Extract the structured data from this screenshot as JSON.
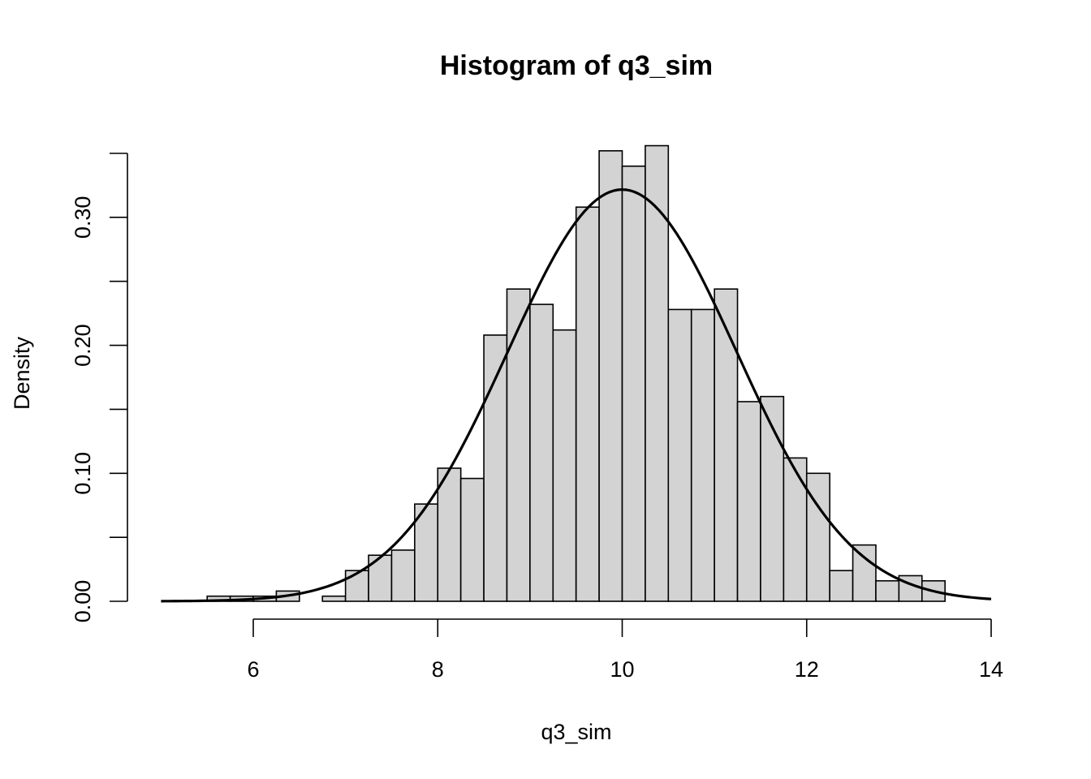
{
  "chart_data": {
    "type": "bar",
    "title": "Histogram of q3_sim",
    "xlabel": "q3_sim",
    "ylabel": "Density",
    "xlim": [
      5,
      14
    ],
    "ylim": [
      0,
      0.35
    ],
    "x_ticks": [
      6,
      8,
      10,
      12,
      14
    ],
    "x_tick_labels": [
      "6",
      "8",
      "10",
      "12",
      "14"
    ],
    "y_ticks": [
      0.0,
      0.05,
      0.1,
      0.15,
      0.2,
      0.25,
      0.3,
      0.35
    ],
    "y_tick_labels": [
      "0.00",
      "",
      "0.10",
      "",
      "0.20",
      "",
      "0.30",
      ""
    ],
    "bin_width": 0.25,
    "bins": [
      {
        "start": 5.5,
        "density": 0.004
      },
      {
        "start": 5.75,
        "density": 0.004
      },
      {
        "start": 6.0,
        "density": 0.004
      },
      {
        "start": 6.25,
        "density": 0.008
      },
      {
        "start": 6.5,
        "density": 0.0
      },
      {
        "start": 6.75,
        "density": 0.004
      },
      {
        "start": 7.0,
        "density": 0.024
      },
      {
        "start": 7.25,
        "density": 0.036
      },
      {
        "start": 7.5,
        "density": 0.04
      },
      {
        "start": 7.75,
        "density": 0.076
      },
      {
        "start": 8.0,
        "density": 0.104
      },
      {
        "start": 8.25,
        "density": 0.096
      },
      {
        "start": 8.5,
        "density": 0.208
      },
      {
        "start": 8.75,
        "density": 0.244
      },
      {
        "start": 9.0,
        "density": 0.232
      },
      {
        "start": 9.25,
        "density": 0.212
      },
      {
        "start": 9.5,
        "density": 0.308
      },
      {
        "start": 9.75,
        "density": 0.352
      },
      {
        "start": 10.0,
        "density": 0.34
      },
      {
        "start": 10.25,
        "density": 0.356
      },
      {
        "start": 10.5,
        "density": 0.228
      },
      {
        "start": 10.75,
        "density": 0.228
      },
      {
        "start": 11.0,
        "density": 0.244
      },
      {
        "start": 11.25,
        "density": 0.156
      },
      {
        "start": 11.5,
        "density": 0.16
      },
      {
        "start": 11.75,
        "density": 0.112
      },
      {
        "start": 12.0,
        "density": 0.1
      },
      {
        "start": 12.25,
        "density": 0.024
      },
      {
        "start": 12.5,
        "density": 0.044
      },
      {
        "start": 12.75,
        "density": 0.016
      },
      {
        "start": 13.0,
        "density": 0.02
      },
      {
        "start": 13.25,
        "density": 0.016
      }
    ],
    "density_curve": {
      "type": "normal",
      "mean": 10.0,
      "sd": 1.24,
      "range": [
        5,
        14
      ]
    },
    "grid": false,
    "legend": "none"
  }
}
